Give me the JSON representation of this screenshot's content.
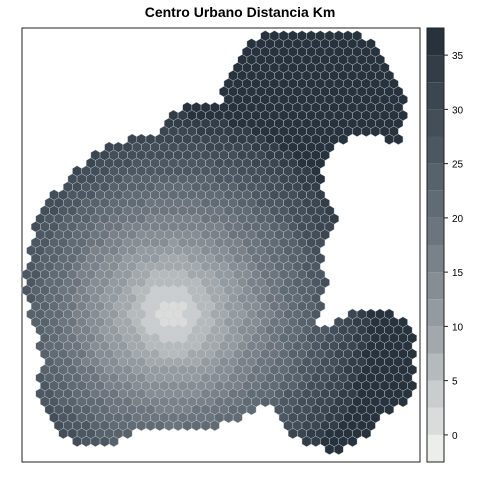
{
  "chart_data": {
    "type": "heatmap",
    "title": "Centro Urbano Distancia Km",
    "xlabel": "",
    "ylabel": "",
    "legend": {
      "placement": "right",
      "ticks": [
        0,
        5,
        10,
        15,
        20,
        25,
        30,
        35
      ],
      "breaks": [
        -2.5,
        0,
        2.5,
        5,
        7.5,
        10,
        12.5,
        15,
        17.5,
        20,
        22.5,
        25,
        27.5,
        30,
        32.5,
        35,
        37.5
      ],
      "colors": [
        "#eceeeb",
        "#d9dcdb",
        "#c9cdcd",
        "#b5babd",
        "#a3a8ac",
        "#949ba0",
        "#868e94",
        "#7a8289",
        "#6c757e",
        "#616b74",
        "#58626b",
        "#4d5761",
        "#434e58",
        "#3b4650",
        "#323d47",
        "#27323c"
      ]
    },
    "center_km": [
      0,
      0
    ],
    "max_distance_km": 37.5,
    "grid": false
  }
}
